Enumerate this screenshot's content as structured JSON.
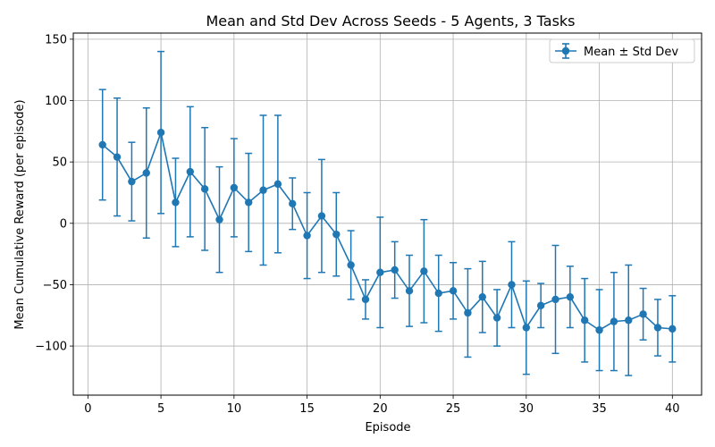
{
  "chart_data": {
    "type": "line",
    "title": "Mean and Std Dev Across Seeds - 5 Agents, 3 Tasks",
    "xlabel": "Episode",
    "ylabel": "Mean Cumulative Reward (per episode)",
    "xlim": [
      -1,
      42
    ],
    "ylim": [
      -140,
      155
    ],
    "xticks": [
      0,
      5,
      10,
      15,
      20,
      25,
      30,
      35,
      40
    ],
    "xtick_labels": [
      "0",
      "5",
      "10",
      "15",
      "20",
      "25",
      "30",
      "35",
      "40"
    ],
    "yticks": [
      150,
      100,
      50,
      0,
      -50,
      -100
    ],
    "ytick_labels": [
      "150",
      "100",
      "50",
      "0",
      "−50",
      "−100"
    ],
    "grid": true,
    "legend_position": "top-right",
    "color": "#1f77b4",
    "series": [
      {
        "name": "Mean ± Std Dev",
        "x": [
          1,
          2,
          3,
          4,
          5,
          6,
          7,
          8,
          9,
          10,
          11,
          12,
          13,
          14,
          15,
          16,
          17,
          18,
          19,
          20,
          21,
          22,
          23,
          24,
          25,
          26,
          27,
          28,
          29,
          30,
          31,
          32,
          33,
          34,
          35,
          36,
          37,
          38,
          39,
          40
        ],
        "y": [
          64,
          54,
          34,
          41,
          74,
          17,
          42,
          28,
          3,
          29,
          17,
          27,
          32,
          16,
          -10,
          6,
          -9,
          -34,
          -62,
          -40,
          -38,
          -55,
          -39,
          -57,
          -55,
          -73,
          -60,
          -77,
          -50,
          -85,
          -67,
          -62,
          -60,
          -79,
          -87,
          -80,
          -79,
          -74,
          -85,
          -86
        ],
        "err": [
          45,
          48,
          32,
          53,
          66,
          36,
          53,
          50,
          43,
          40,
          40,
          61,
          56,
          21,
          35,
          46,
          34,
          28,
          16,
          45,
          23,
          29,
          42,
          31,
          23,
          36,
          29,
          23,
          35,
          38,
          18,
          44,
          25,
          34,
          33,
          40,
          45,
          21,
          23,
          27
        ]
      }
    ]
  }
}
